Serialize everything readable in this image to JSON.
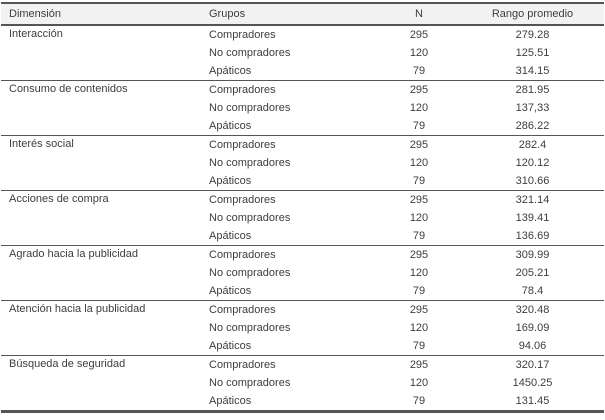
{
  "colors": {
    "border": "#555555",
    "header_background": "#f2f2f2",
    "text": "#3d3d3d",
    "page_background": "#ffffff"
  },
  "table": {
    "columns": [
      {
        "key": "dimension",
        "label": "Dimensión"
      },
      {
        "key": "grupos",
        "label": "Grupos"
      },
      {
        "key": "n",
        "label": "N"
      },
      {
        "key": "rango",
        "label": "Rango promedio"
      }
    ],
    "groups": [
      {
        "dimension": "Interacción",
        "rows": [
          {
            "grupo": "Compradores",
            "n": "295",
            "rango": "279.28"
          },
          {
            "grupo": "No compradores",
            "n": "120",
            "rango": "125.51"
          },
          {
            "grupo": "Apáticos",
            "n": "79",
            "rango": "314.15"
          }
        ]
      },
      {
        "dimension": "Consumo de contenidos",
        "rows": [
          {
            "grupo": "Compradores",
            "n": "295",
            "rango": "281.95"
          },
          {
            "grupo": "No compradores",
            "n": "120",
            "rango": "137,33"
          },
          {
            "grupo": "Apáticos",
            "n": "79",
            "rango": "286.22"
          }
        ]
      },
      {
        "dimension": "Interés social",
        "rows": [
          {
            "grupo": "Compradores",
            "n": "295",
            "rango": "282.4"
          },
          {
            "grupo": "No compradores",
            "n": "120",
            "rango": "120.12"
          },
          {
            "grupo": "Apáticos",
            "n": "79",
            "rango": "310.66"
          }
        ]
      },
      {
        "dimension": "Acciones de compra",
        "rows": [
          {
            "grupo": "Compradores",
            "n": "295",
            "rango": "321.14"
          },
          {
            "grupo": "No compradores",
            "n": "120",
            "rango": "139.41"
          },
          {
            "grupo": "Apáticos",
            "n": "79",
            "rango": "136.69"
          }
        ]
      },
      {
        "dimension": "Agrado hacia la publicidad",
        "rows": [
          {
            "grupo": "Compradores",
            "n": "295",
            "rango": "309.99"
          },
          {
            "grupo": "No compradores",
            "n": "120",
            "rango": "205.21"
          },
          {
            "grupo": "Apáticos",
            "n": "79",
            "rango": "78.4"
          }
        ]
      },
      {
        "dimension": "Atención hacia la publicidad",
        "rows": [
          {
            "grupo": "Compradores",
            "n": "295",
            "rango": "320.48"
          },
          {
            "grupo": "No compradores",
            "n": "120",
            "rango": "169.09"
          },
          {
            "grupo": "Apáticos",
            "n": "79",
            "rango": "94.06"
          }
        ]
      },
      {
        "dimension": "Búsqueda de seguridad",
        "rows": [
          {
            "grupo": "Compradores",
            "n": "295",
            "rango": "320.17"
          },
          {
            "grupo": "No compradores",
            "n": "120",
            "rango": "1450.25"
          },
          {
            "grupo": "Apáticos",
            "n": "79",
            "rango": "131.45"
          }
        ]
      }
    ]
  }
}
